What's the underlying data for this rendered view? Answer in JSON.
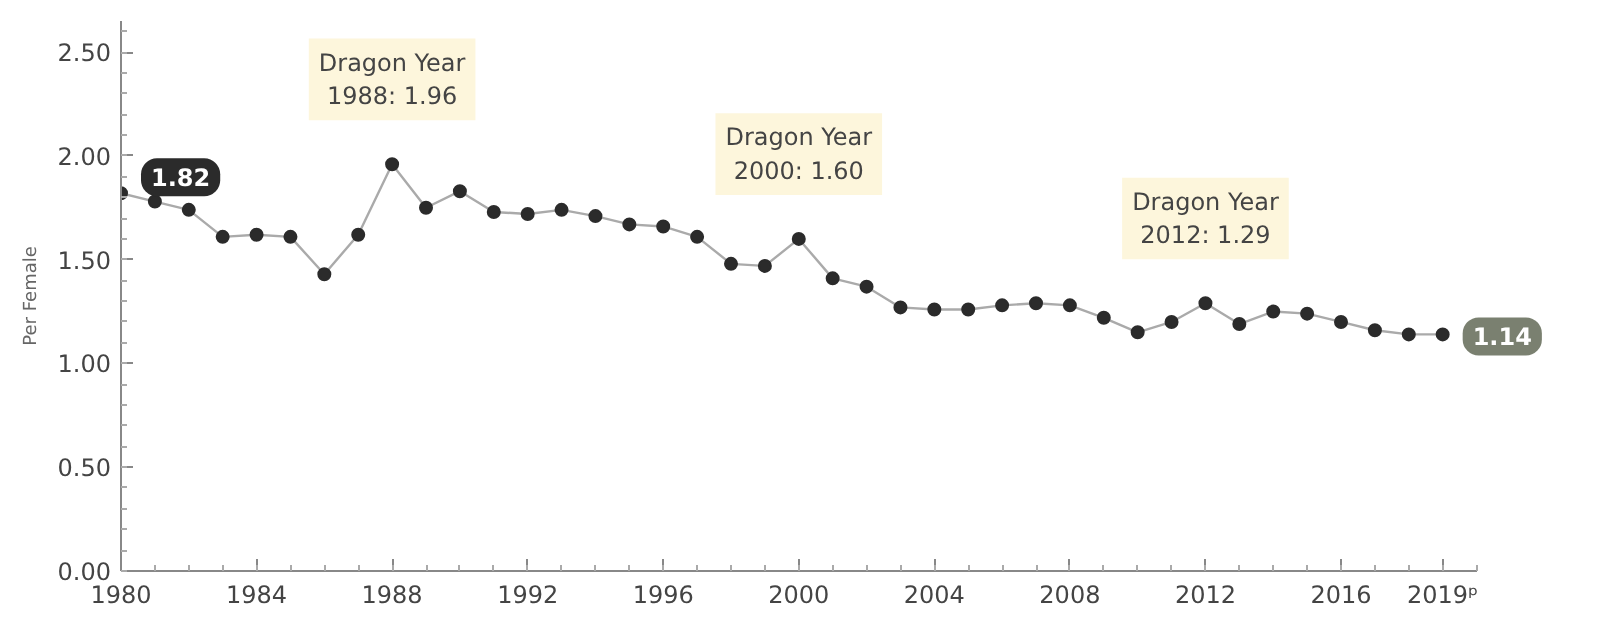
{
  "chart_data": {
    "type": "line",
    "ylabel": "Per Female",
    "x": [
      1980,
      1981,
      1982,
      1983,
      1984,
      1985,
      1986,
      1987,
      1988,
      1989,
      1990,
      1991,
      1992,
      1993,
      1994,
      1995,
      1996,
      1997,
      1998,
      1999,
      2000,
      2001,
      2002,
      2003,
      2004,
      2005,
      2006,
      2007,
      2008,
      2009,
      2010,
      2011,
      2012,
      2013,
      2014,
      2015,
      2016,
      2017,
      2018,
      2019
    ],
    "series": [
      {
        "color": "#2b2b2b",
        "values": [
          1.82,
          1.78,
          1.74,
          1.61,
          1.62,
          1.61,
          1.43,
          1.62,
          1.96,
          1.75,
          1.83,
          1.73,
          1.72,
          1.74,
          1.71,
          1.67,
          1.66,
          1.61,
          1.48,
          1.47,
          1.6,
          1.41,
          1.37,
          1.27,
          1.26,
          1.26,
          1.28,
          1.29,
          1.28,
          1.22,
          1.15,
          1.2,
          1.29,
          1.19,
          1.25,
          1.24,
          1.2,
          1.16,
          1.14,
          1.14
        ],
        "value_labels": [
          "1.82",
          null,
          null,
          null,
          null,
          null,
          null,
          null,
          null,
          null,
          null,
          null,
          null,
          null,
          null,
          null,
          null,
          null,
          null,
          null,
          null,
          null,
          null,
          null,
          null,
          null,
          null,
          null,
          null,
          null,
          null,
          null,
          null,
          null,
          null,
          null,
          null,
          null,
          null,
          "1.14"
        ]
      }
    ],
    "xlim": [
      1980,
      2020
    ],
    "xticks": [
      1980,
      1984,
      1988,
      1992,
      1996,
      2000,
      2004,
      2008,
      2012,
      2016,
      {
        "value": 2019,
        "label": "2019ᵖ"
      }
    ],
    "ylim": [
      0,
      2.65
    ],
    "yticks": [
      {
        "value": 0,
        "label": "0.00"
      },
      {
        "value": 0.5,
        "label": "0.50"
      },
      {
        "value": 1,
        "label": "1.00"
      },
      {
        "value": 1.5,
        "label": "1.50"
      },
      {
        "value": 2,
        "label": "2.00"
      },
      {
        "value": 2.5,
        "label": "2.50"
      }
    ],
    "annotations": [
      {
        "text": "Dragon Year\n1988: 1.96",
        "x": 1988,
        "y": 1.96
      },
      {
        "text": "Dragon Year\n2000: 1.60",
        "x": 2000,
        "y": 1.6
      },
      {
        "text": "Dragon Year\n2012: 1.29",
        "x": 2012,
        "y": 1.29
      }
    ],
    "grid": false,
    "marker": "circle",
    "line_style": "solid"
  }
}
